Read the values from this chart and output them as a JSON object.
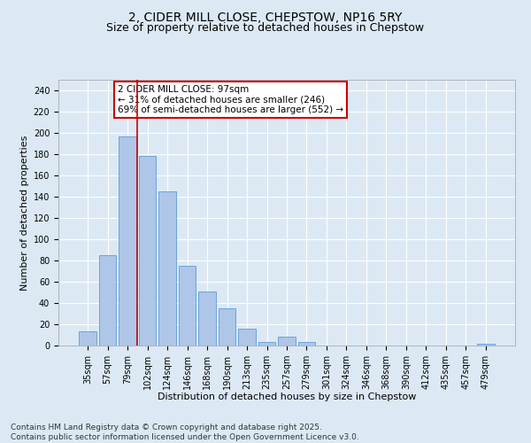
{
  "title_line1": "2, CIDER MILL CLOSE, CHEPSTOW, NP16 5RY",
  "title_line2": "Size of property relative to detached houses in Chepstow",
  "xlabel": "Distribution of detached houses by size in Chepstow",
  "ylabel": "Number of detached properties",
  "categories": [
    "35sqm",
    "57sqm",
    "79sqm",
    "102sqm",
    "124sqm",
    "146sqm",
    "168sqm",
    "190sqm",
    "213sqm",
    "235sqm",
    "257sqm",
    "279sqm",
    "301sqm",
    "324sqm",
    "346sqm",
    "368sqm",
    "390sqm",
    "412sqm",
    "435sqm",
    "457sqm",
    "479sqm"
  ],
  "values": [
    13,
    85,
    197,
    178,
    145,
    75,
    51,
    35,
    16,
    3,
    8,
    3,
    0,
    0,
    0,
    0,
    0,
    0,
    0,
    0,
    2
  ],
  "bar_color": "#aec6e8",
  "bar_edgecolor": "#5b9bd5",
  "vline_color": "#cc0000",
  "annotation_text": "2 CIDER MILL CLOSE: 97sqm\n← 31% of detached houses are smaller (246)\n69% of semi-detached houses are larger (552) →",
  "annotation_box_edgecolor": "#cc0000",
  "ylim": [
    0,
    250
  ],
  "yticks": [
    0,
    20,
    40,
    60,
    80,
    100,
    120,
    140,
    160,
    180,
    200,
    220,
    240
  ],
  "background_color": "#dce9f5",
  "plot_bg_color": "#dce9f5",
  "footer_text": "Contains HM Land Registry data © Crown copyright and database right 2025.\nContains public sector information licensed under the Open Government Licence v3.0.",
  "title_fontsize": 10,
  "subtitle_fontsize": 9,
  "axis_label_fontsize": 8,
  "tick_fontsize": 7,
  "footer_fontsize": 6.5,
  "annot_fontsize": 7.5
}
